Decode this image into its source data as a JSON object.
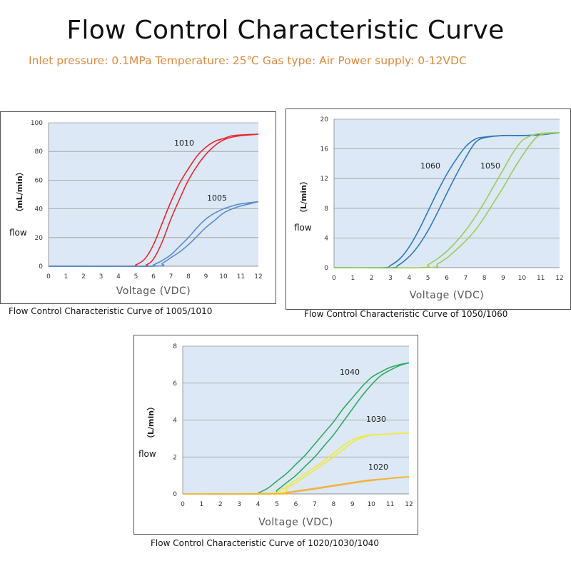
{
  "page": {
    "title": "Flow Control Characteristic Curve",
    "subtitle": "Inlet pressure: 0.1MPa Temperature: 25℃ Gas type: Air Power supply: 0-12VDC"
  },
  "chart_data": [
    {
      "type": "line",
      "caption": "Flow Control Characteristic Curve of 1005/1010",
      "ylabel": "（mL/min）",
      "side_label": "flow",
      "xlabel": "Voltage (VDC)",
      "xlim": [
        0,
        12
      ],
      "ylim": [
        0,
        100
      ],
      "x_ticks": [
        0,
        1,
        2,
        3,
        4,
        5,
        6,
        7,
        8,
        9,
        10,
        11,
        12
      ],
      "y_ticks": [
        0,
        20,
        40,
        60,
        80,
        100
      ],
      "grid": true,
      "plot_bg": "#dce8f5",
      "series": [
        {
          "name": "1010",
          "color": "#e8282b",
          "lines": [
            {
              "x": [
                0,
                4.6,
                5.0,
                5.5,
                6.0,
                6.5,
                7.0,
                7.5,
                8.0,
                8.5,
                9.0,
                9.5,
                10.0,
                10.5,
                11.0,
                12.0
              ],
              "y": [
                0,
                0,
                1,
                5,
                15,
                30,
                45,
                58,
                68,
                77,
                83,
                87,
                89,
                91,
                91.5,
                92
              ]
            },
            {
              "x": [
                0,
                5.2,
                5.6,
                6.0,
                6.5,
                7.0,
                7.5,
                8.0,
                8.5,
                9.0,
                9.5,
                10.0,
                10.5,
                11.0,
                12.0
              ],
              "y": [
                0,
                0,
                1,
                5,
                17,
                33,
                47,
                60,
                70,
                78,
                84,
                88,
                90,
                91,
                92
              ]
            }
          ]
        },
        {
          "name": "1005",
          "color": "#5a8ccc",
          "lines": [
            {
              "x": [
                0,
                5.6,
                6.0,
                6.5,
                7.0,
                7.5,
                8.0,
                8.5,
                9.0,
                9.5,
                10.0,
                10.5,
                11.0,
                12.0
              ],
              "y": [
                0,
                0,
                1,
                4,
                8,
                14,
                20,
                27,
                33,
                37,
                40,
                42,
                43.5,
                45
              ]
            },
            {
              "x": [
                0,
                6.0,
                6.5,
                7.0,
                7.5,
                8.0,
                8.5,
                9.0,
                9.5,
                10.0,
                10.5,
                11.0,
                12.0
              ],
              "y": [
                0,
                0,
                2,
                6,
                10,
                15,
                21,
                27,
                32,
                37,
                40,
                42,
                45
              ]
            }
          ]
        }
      ],
      "annotations": [
        "1010",
        "1005"
      ]
    },
    {
      "type": "line",
      "caption": "Flow Control Characteristic Curve of 1050/1060",
      "ylabel": "（L/min）",
      "side_label": "flow",
      "xlabel": "Voltage (VDC)",
      "xlim": [
        0,
        12
      ],
      "ylim": [
        0,
        20
      ],
      "x_ticks": [
        0,
        1,
        2,
        3,
        4,
        5,
        6,
        7,
        8,
        9,
        10,
        11,
        12
      ],
      "y_ticks": [
        0,
        4,
        8,
        12,
        16,
        20
      ],
      "grid": true,
      "plot_bg": "#dce8f5",
      "series": [
        {
          "name": "1060",
          "color": "#2f78bd",
          "lines": [
            {
              "x": [
                0,
                2.6,
                3.0,
                3.5,
                4.0,
                4.5,
                5.0,
                5.5,
                6.0,
                6.5,
                7.0,
                7.5,
                8.0,
                9.0,
                10.0,
                11.0,
                12.0
              ],
              "y": [
                0,
                0,
                0.3,
                1.2,
                2.8,
                5,
                7.6,
                10.2,
                12.6,
                14.6,
                16.3,
                17.3,
                17.6,
                17.8,
                17.8,
                17.9,
                18.2
              ]
            },
            {
              "x": [
                0,
                3.0,
                3.4,
                4.0,
                4.5,
                5.0,
                5.5,
                6.0,
                6.5,
                7.0,
                7.5,
                8.0,
                9.0,
                10.0,
                11.0,
                12.0
              ],
              "y": [
                0,
                0,
                0.3,
                1.5,
                3,
                5,
                7.4,
                10,
                12.5,
                14.8,
                16.8,
                17.5,
                17.8,
                17.8,
                17.9,
                18.2
              ]
            }
          ]
        },
        {
          "name": "1050",
          "color": "#9ccc5a",
          "lines": [
            {
              "x": [
                0,
                4.6,
                5.0,
                5.5,
                6.0,
                6.5,
                7.0,
                7.5,
                8.0,
                8.5,
                9.0,
                9.5,
                10.0,
                10.5,
                11.0,
                12.0
              ],
              "y": [
                0,
                0,
                0.4,
                1.2,
                2.2,
                3.5,
                5,
                6.8,
                8.8,
                11,
                13.2,
                15.4,
                17.1,
                17.8,
                18.1,
                18.2
              ]
            },
            {
              "x": [
                0,
                5.0,
                5.5,
                6.0,
                6.5,
                7.0,
                7.5,
                8.0,
                8.5,
                9.0,
                9.5,
                10.0,
                10.5,
                11.0,
                12.0
              ],
              "y": [
                0,
                0,
                0.5,
                1.3,
                2.4,
                3.6,
                5,
                6.8,
                8.8,
                10.8,
                13,
                15,
                16.8,
                17.9,
                18.2
              ]
            }
          ]
        }
      ],
      "annotations": [
        "1060",
        "1050"
      ]
    },
    {
      "type": "line",
      "caption": "Flow Control Characteristic Curve of 1020/1030/1040",
      "ylabel": "（L/min）",
      "side_label": "flow",
      "xlabel": "Voltage (VDC)",
      "xlim": [
        0,
        12
      ],
      "ylim": [
        0,
        8
      ],
      "x_ticks": [
        0,
        1,
        2,
        3,
        4,
        5,
        6,
        7,
        8,
        9,
        10,
        11,
        12
      ],
      "y_ticks": [
        0,
        2,
        4,
        6,
        8
      ],
      "grid": true,
      "plot_bg": "#dce8f5",
      "series": [
        {
          "name": "1040",
          "color": "#2eab5e",
          "lines": [
            {
              "x": [
                0,
                3.8,
                4.0,
                4.5,
                5.0,
                5.5,
                6.0,
                6.5,
                7.0,
                7.5,
                8.0,
                8.5,
                9.0,
                9.5,
                10.0,
                10.5,
                11.0,
                11.5,
                12.0
              ],
              "y": [
                0,
                0,
                0.05,
                0.3,
                0.7,
                1.1,
                1.6,
                2.1,
                2.7,
                3.3,
                3.9,
                4.6,
                5.2,
                5.8,
                6.3,
                6.6,
                6.85,
                7.0,
                7.1
              ]
            },
            {
              "x": [
                0,
                4.6,
                5.0,
                5.5,
                6.0,
                6.5,
                7.0,
                7.5,
                8.0,
                8.5,
                9.0,
                9.5,
                10.0,
                10.5,
                11.0,
                11.5,
                12.0
              ],
              "y": [
                0,
                0,
                0.2,
                0.6,
                1.0,
                1.5,
                2.0,
                2.6,
                3.2,
                3.9,
                4.6,
                5.3,
                5.9,
                6.4,
                6.7,
                6.95,
                7.1
              ]
            }
          ]
        },
        {
          "name": "1030",
          "color": "#f2e83a",
          "lines": [
            {
              "x": [
                0,
                4.8,
                5.0,
                5.5,
                6.0,
                6.5,
                7.0,
                7.5,
                8.0,
                8.5,
                9.0,
                9.5,
                10.0,
                10.5,
                11.0,
                12.0
              ],
              "y": [
                0,
                0,
                0.1,
                0.4,
                0.75,
                1.1,
                1.45,
                1.8,
                2.2,
                2.6,
                2.95,
                3.1,
                3.2,
                3.22,
                3.25,
                3.3
              ]
            },
            {
              "x": [
                0,
                5.0,
                5.5,
                6.0,
                6.5,
                7.0,
                7.5,
                8.0,
                8.5,
                9.0,
                9.5,
                10.0,
                10.5,
                11.0,
                12.0
              ],
              "y": [
                0,
                0.05,
                0.3,
                0.6,
                0.95,
                1.3,
                1.65,
                2.0,
                2.4,
                2.8,
                3.05,
                3.18,
                3.22,
                3.25,
                3.3
              ]
            }
          ]
        },
        {
          "name": "1020",
          "color": "#f0b43c",
          "lines": [
            {
              "x": [
                0,
                5.0,
                5.5,
                6.0,
                6.5,
                7.0,
                7.5,
                8.0,
                8.5,
                9.0,
                9.5,
                10.0,
                10.5,
                11.0,
                11.5,
                12.0
              ],
              "y": [
                0,
                0.02,
                0.08,
                0.15,
                0.23,
                0.3,
                0.38,
                0.46,
                0.54,
                0.62,
                0.7,
                0.76,
                0.8,
                0.85,
                0.9,
                0.93
              ]
            },
            {
              "x": [
                0,
                5.2,
                5.5,
                6.0,
                6.5,
                7.0,
                7.5,
                8.0,
                8.5,
                9.0,
                9.5,
                10.0,
                10.5,
                11.0,
                11.5,
                12.0
              ],
              "y": [
                0,
                0.0,
                0.05,
                0.12,
                0.19,
                0.26,
                0.34,
                0.42,
                0.5,
                0.58,
                0.66,
                0.72,
                0.78,
                0.83,
                0.88,
                0.93
              ]
            }
          ]
        }
      ],
      "annotations": [
        "1040",
        "1030",
        "1020"
      ]
    }
  ]
}
